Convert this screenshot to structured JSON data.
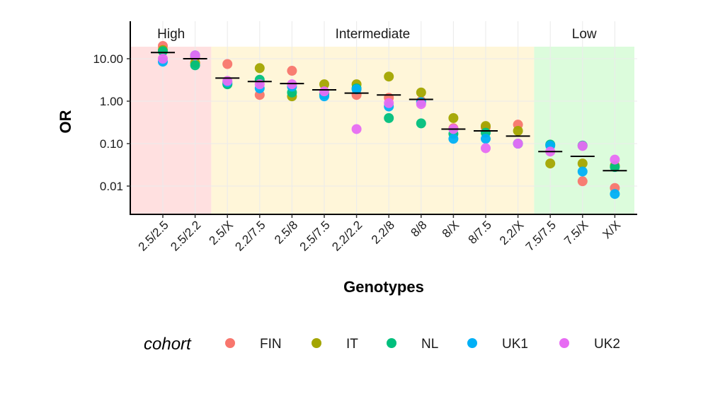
{
  "chart_data": {
    "type": "scatter",
    "title": "",
    "xlabel": "Genotypes",
    "ylabel": "OR",
    "y_scale": "log10",
    "ylim": [
      0.0025,
      60
    ],
    "y_ticks": [
      0.01,
      0.1,
      1,
      10
    ],
    "y_tick_labels": [
      "0.01",
      "0.10",
      "1.00",
      "10.00"
    ],
    "grid": true,
    "categories": [
      "2.5/2.5",
      "2.5/2.2",
      "2.5/X",
      "2.2/7.5",
      "2.5/8",
      "2.5/7.5",
      "2.2/2.2",
      "2.2/8",
      "8/8",
      "8/X",
      "8/7.5",
      "2.2/X",
      "7.5/7.5",
      "7.5/X",
      "X/X"
    ],
    "regions": [
      {
        "label": "High",
        "from": 0,
        "to": 1,
        "color": "#ffe0e0"
      },
      {
        "label": "Intermediate",
        "from": 2,
        "to": 11,
        "color": "#fff6d9"
      },
      {
        "label": "Low",
        "from": 12,
        "to": 14,
        "color": "#dcfcdc"
      }
    ],
    "summary_line": {
      "values": [
        14,
        10,
        3.5,
        2.9,
        2.6,
        1.85,
        1.55,
        1.4,
        1.1,
        0.22,
        0.2,
        0.15,
        0.065,
        0.05,
        0.023
      ]
    },
    "legend": {
      "title": "cohort",
      "position": "bottom"
    },
    "series": [
      {
        "name": "FIN",
        "color": "#f8766d",
        "values": [
          20,
          11,
          7.5,
          1.4,
          5.2,
          1.5,
          1.4,
          1.2,
          1.0,
          0.23,
          0.24,
          0.28,
          null,
          0.013,
          0.009
        ]
      },
      {
        "name": "IT",
        "color": "#a3a500",
        "values": [
          16,
          8,
          2.6,
          6.0,
          1.3,
          2.5,
          2.5,
          3.8,
          1.6,
          0.4,
          0.26,
          0.2,
          0.034,
          0.034,
          0.03
        ]
      },
      {
        "name": "NL",
        "color": "#00bf7d",
        "values": [
          15,
          7,
          2.5,
          3.2,
          1.6,
          1.45,
          2.0,
          0.4,
          0.3,
          0.17,
          0.18,
          0.1,
          0.095,
          0.09,
          0.028
        ]
      },
      {
        "name": "UK1",
        "color": "#00b0f6",
        "values": [
          8.5,
          12,
          2.8,
          2.0,
          2.2,
          1.3,
          1.9,
          0.75,
          0.95,
          0.13,
          0.13,
          0.1,
          0.09,
          0.022,
          0.0065
        ]
      },
      {
        "name": "UK2",
        "color": "#e76bf3",
        "values": [
          10,
          12,
          3.0,
          2.5,
          2.5,
          1.7,
          0.22,
          0.9,
          0.85,
          0.22,
          0.078,
          0.1,
          0.065,
          0.088,
          0.042
        ]
      }
    ]
  }
}
